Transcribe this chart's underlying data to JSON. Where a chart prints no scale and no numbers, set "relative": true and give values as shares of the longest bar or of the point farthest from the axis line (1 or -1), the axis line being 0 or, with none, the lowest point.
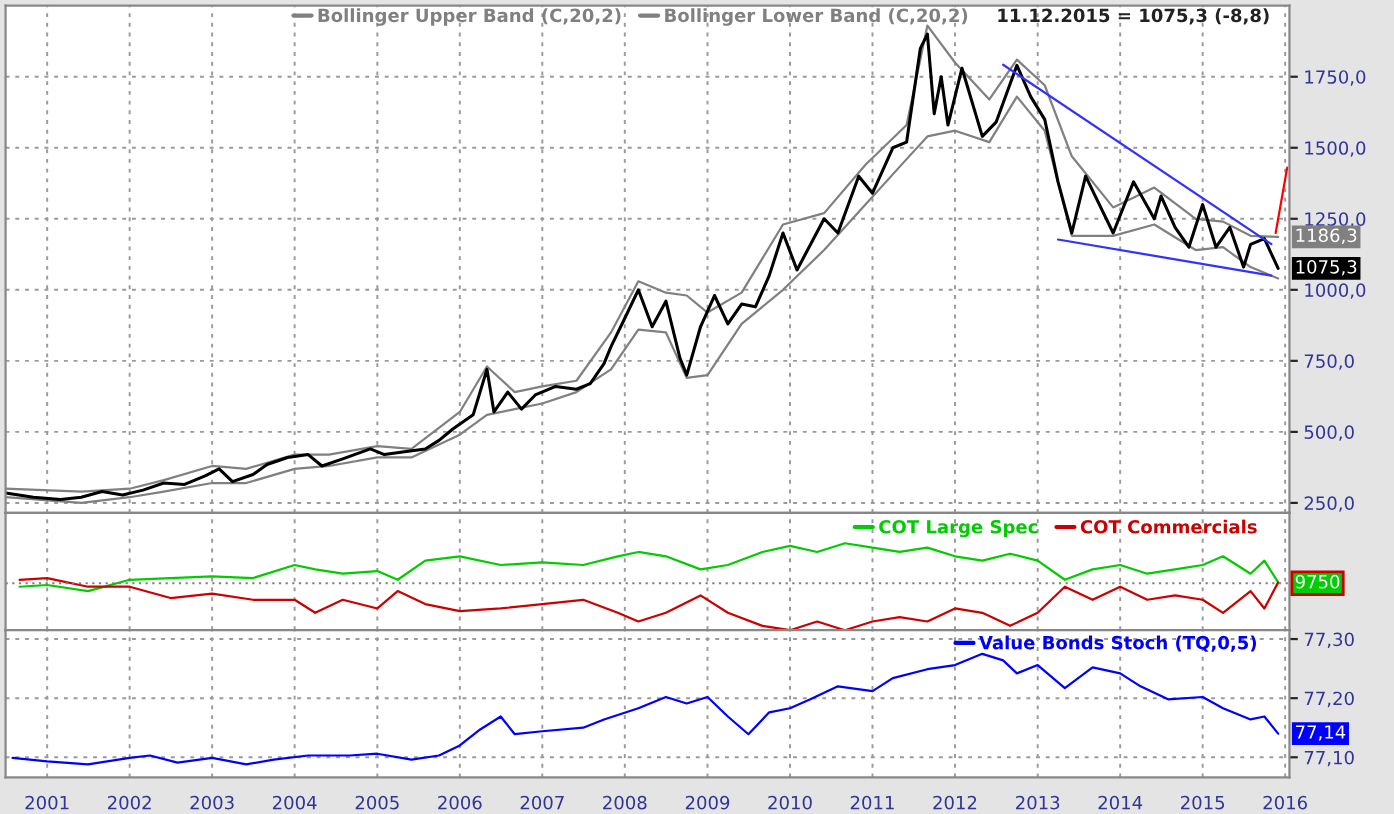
{
  "chart_data": [
    {
      "type": "line",
      "xlim": [
        "2000-07-01",
        "2016-01-20"
      ],
      "ylim": [
        215,
        2000
      ],
      "xticks": [
        "2001",
        "2002",
        "2003",
        "2004",
        "2005",
        "2006",
        "2007",
        "2008",
        "2009",
        "2010",
        "2011",
        "2012",
        "2013",
        "2014",
        "2015",
        "2016"
      ],
      "yticks": [
        {
          "value": 250,
          "label": "250,0"
        },
        {
          "value": 500,
          "label": "500,0"
        },
        {
          "value": 750,
          "label": "750,0"
        },
        {
          "value": 1000,
          "label": "1000,0"
        },
        {
          "value": 1250,
          "label": "1250,0"
        },
        {
          "value": 1500,
          "label": "1500,0"
        },
        {
          "value": 1750,
          "label": "1750,0"
        }
      ],
      "tick_labels": "y",
      "grid": true,
      "legend": "top right",
      "annotations": [
        "11.12.2015 = 1075,3 (-8,8)"
      ],
      "series": [
        {
          "name": "Bollinger Upper Band (C,20,2)",
          "color": "#808080",
          "x": [
            "2000-07",
            "2001-06",
            "2002-01",
            "2002-06",
            "2003-01",
            "2003-06",
            "2004-01",
            "2004-06",
            "2005-01",
            "2005-06",
            "2006-01",
            "2006-05",
            "2006-09",
            "2007-01",
            "2007-06",
            "2007-11",
            "2008-03",
            "2008-07",
            "2008-10",
            "2009-01",
            "2009-06",
            "2009-12",
            "2010-06",
            "2010-12",
            "2011-06",
            "2011-09",
            "2012-01",
            "2012-06",
            "2012-10",
            "2013-02",
            "2013-06",
            "2013-12",
            "2014-06",
            "2014-12",
            "2015-04",
            "2015-08",
            "2015-12"
          ],
          "values": [
            300,
            290,
            300,
            330,
            380,
            370,
            420,
            420,
            450,
            440,
            570,
            730,
            640,
            660,
            680,
            850,
            1030,
            990,
            980,
            920,
            990,
            1230,
            1270,
            1440,
            1580,
            1930,
            1800,
            1670,
            1810,
            1720,
            1470,
            1290,
            1360,
            1250,
            1240,
            1190,
            1186.3
          ],
          "value_labels": [
            null,
            null,
            null,
            null,
            null,
            null,
            null,
            null,
            null,
            null,
            null,
            null,
            null,
            null,
            null,
            null,
            null,
            null,
            null,
            null,
            null,
            null,
            null,
            null,
            null,
            null,
            null,
            null,
            null,
            null,
            null,
            null,
            null,
            null,
            null,
            null,
            "1186,3"
          ]
        },
        {
          "name": "Bollinger Lower Band (C,20,2)",
          "color": "#808080",
          "x": [
            "2000-07",
            "2001-06",
            "2002-01",
            "2002-06",
            "2003-01",
            "2003-06",
            "2004-01",
            "2004-06",
            "2005-01",
            "2005-06",
            "2006-01",
            "2006-05",
            "2006-09",
            "2007-01",
            "2007-06",
            "2007-11",
            "2008-03",
            "2008-07",
            "2008-10",
            "2009-01",
            "2009-06",
            "2009-12",
            "2010-06",
            "2010-12",
            "2011-06",
            "2011-09",
            "2012-01",
            "2012-06",
            "2012-10",
            "2013-02",
            "2013-06",
            "2013-12",
            "2014-06",
            "2014-12",
            "2015-04",
            "2015-08",
            "2015-12"
          ],
          "values": [
            270,
            250,
            270,
            290,
            320,
            320,
            370,
            380,
            410,
            410,
            490,
            560,
            580,
            600,
            640,
            720,
            860,
            850,
            690,
            700,
            880,
            1000,
            1140,
            1300,
            1460,
            1540,
            1560,
            1520,
            1680,
            1560,
            1190,
            1190,
            1230,
            1140,
            1150,
            1080,
            1040
          ]
        },
        {
          "color": "#000000",
          "x": [
            "2000-07",
            "2000-11",
            "2001-03",
            "2001-06",
            "2001-09",
            "2001-12",
            "2002-03",
            "2002-06",
            "2002-09",
            "2002-12",
            "2003-02",
            "2003-04",
            "2003-07",
            "2003-09",
            "2003-12",
            "2004-03",
            "2004-05",
            "2004-08",
            "2004-12",
            "2005-02",
            "2005-05",
            "2005-08",
            "2005-10",
            "2005-12",
            "2006-03",
            "2006-05",
            "2006-06",
            "2006-08",
            "2006-10",
            "2006-12",
            "2007-03",
            "2007-06",
            "2007-08",
            "2007-10",
            "2007-11",
            "2008-01",
            "2008-03",
            "2008-05",
            "2008-07",
            "2008-09",
            "2008-10",
            "2008-12",
            "2009-02",
            "2009-04",
            "2009-06",
            "2009-08",
            "2009-10",
            "2009-12",
            "2010-02",
            "2010-06",
            "2010-08",
            "2010-11",
            "2011-01",
            "2011-04",
            "2011-06",
            "2011-08",
            "2011-09",
            "2011-10",
            "2011-11",
            "2011-12",
            "2012-02",
            "2012-05",
            "2012-07",
            "2012-10",
            "2012-12",
            "2013-02",
            "2013-04",
            "2013-06",
            "2013-08",
            "2013-10",
            "2013-12",
            "2014-03",
            "2014-06",
            "2014-07",
            "2014-09",
            "2014-11",
            "2015-01",
            "2015-03",
            "2015-05",
            "2015-07",
            "2015-08",
            "2015-10",
            "2015-12"
          ],
          "values": [
            285,
            270,
            262,
            270,
            290,
            278,
            295,
            320,
            315,
            345,
            370,
            325,
            350,
            385,
            410,
            420,
            380,
            405,
            440,
            420,
            430,
            440,
            470,
            510,
            560,
            720,
            570,
            640,
            580,
            630,
            660,
            650,
            670,
            740,
            800,
            900,
            1000,
            870,
            960,
            760,
            700,
            870,
            980,
            880,
            950,
            940,
            1050,
            1200,
            1070,
            1250,
            1200,
            1400,
            1340,
            1500,
            1520,
            1850,
            1900,
            1620,
            1750,
            1580,
            1780,
            1540,
            1590,
            1790,
            1680,
            1600,
            1380,
            1200,
            1400,
            1300,
            1200,
            1380,
            1250,
            1330,
            1220,
            1150,
            1300,
            1150,
            1220,
            1080,
            1160,
            1180,
            1075.3
          ],
          "value_labels": [
            null,
            null,
            null,
            null,
            null,
            null,
            null,
            null,
            null,
            null,
            null,
            null,
            null,
            null,
            null,
            null,
            null,
            null,
            null,
            null,
            null,
            null,
            null,
            null,
            null,
            null,
            null,
            null,
            null,
            null,
            null,
            null,
            null,
            null,
            null,
            null,
            null,
            null,
            null,
            null,
            null,
            null,
            null,
            null,
            null,
            null,
            null,
            null,
            null,
            null,
            null,
            null,
            null,
            null,
            null,
            null,
            null,
            null,
            null,
            null,
            null,
            null,
            null,
            null,
            null,
            null,
            null,
            null,
            null,
            null,
            null,
            null,
            null,
            null,
            null,
            null,
            null,
            null,
            null,
            null,
            null,
            null,
            "1075,3"
          ]
        },
        {
          "color": "#3232ff",
          "x": [
            "2012-08",
            "2015-11"
          ],
          "values": [
            1792,
            1161
          ]
        },
        {
          "color": "#3232ff",
          "x": [
            "2013-04",
            "2015-11"
          ],
          "values": [
            1177,
            1050
          ]
        },
        {
          "color": "#ff0000",
          "x": [
            "2015-11-20",
            "2016-01-10"
          ],
          "values": [
            1200,
            1430
          ]
        }
      ]
    },
    {
      "type": "line",
      "relative": true,
      "xlim": [
        "2000-07-01",
        "2016-01-20"
      ],
      "xticks": [
        "2001",
        "2002",
        "2003",
        "2004",
        "2005",
        "2006",
        "2007",
        "2008",
        "2009",
        "2010",
        "2011",
        "2012",
        "2013",
        "2014",
        "2015",
        "2016"
      ],
      "tick_labels": false,
      "grid": true,
      "legend": "top right",
      "ref_lines": [
        {
          "axis": "y",
          "value": 0.54,
          "color": "#808080",
          "line_style": "dotted"
        }
      ],
      "annotations": [
        {
          "text": "9750",
          "y": 0.54
        }
      ],
      "x": [
        "2000-09",
        "2001-01",
        "2001-07",
        "2002-01",
        "2002-07",
        "2003-01",
        "2003-07",
        "2004-01",
        "2004-04",
        "2004-08",
        "2005-01",
        "2005-04",
        "2005-08",
        "2006-01",
        "2006-07",
        "2007-01",
        "2007-07",
        "2007-12",
        "2008-03",
        "2008-07",
        "2008-12",
        "2009-04",
        "2009-09",
        "2010-01",
        "2010-05",
        "2010-09",
        "2011-01",
        "2011-05",
        "2011-09",
        "2012-01",
        "2012-05",
        "2012-09",
        "2013-01",
        "2013-05",
        "2013-09",
        "2014-01",
        "2014-05",
        "2014-09",
        "2015-01",
        "2015-04",
        "2015-08",
        "2015-10",
        "2015-12"
      ],
      "series": [
        {
          "name": "COT Large Spec",
          "color": "#00cc00",
          "values": [
            0.5,
            0.52,
            0.45,
            0.58,
            0.6,
            0.62,
            0.6,
            0.75,
            0.7,
            0.65,
            0.68,
            0.58,
            0.8,
            0.85,
            0.75,
            0.78,
            0.75,
            0.85,
            0.9,
            0.85,
            0.7,
            0.75,
            0.9,
            0.97,
            0.9,
            1.0,
            0.95,
            0.9,
            0.95,
            0.85,
            0.8,
            0.88,
            0.8,
            0.58,
            0.7,
            0.75,
            0.65,
            0.7,
            0.75,
            0.85,
            0.65,
            0.8,
            0.55
          ]
        },
        {
          "name": "COT Commercials",
          "color": "#cc0000",
          "values": [
            0.58,
            0.6,
            0.5,
            0.5,
            0.37,
            0.42,
            0.35,
            0.35,
            0.2,
            0.35,
            0.25,
            0.45,
            0.3,
            0.22,
            0.25,
            0.3,
            0.35,
            0.2,
            0.1,
            0.2,
            0.4,
            0.2,
            0.05,
            0,
            0.1,
            0,
            0.1,
            0.15,
            0.1,
            0.25,
            0.2,
            0.05,
            0.2,
            0.5,
            0.35,
            0.5,
            0.35,
            0.4,
            0.35,
            0.2,
            0.45,
            0.25,
            0.55
          ]
        }
      ]
    },
    {
      "type": "line",
      "xlim": [
        "2000-07-01",
        "2016-01-20"
      ],
      "ylim": [
        77.066,
        77.315
      ],
      "xticks": [
        "2001",
        "2002",
        "2003",
        "2004",
        "2005",
        "2006",
        "2007",
        "2008",
        "2009",
        "2010",
        "2011",
        "2012",
        "2013",
        "2014",
        "2015",
        "2016"
      ],
      "yticks": [
        {
          "value": 77.1,
          "label": "77,10"
        },
        {
          "value": 77.2,
          "label": "77,20"
        },
        {
          "value": 77.3,
          "label": "77,30"
        }
      ],
      "grid": true,
      "legend": "top right",
      "x": [
        "2000-08",
        "2001-01",
        "2001-07",
        "2002-01",
        "2002-04",
        "2002-08",
        "2003-01",
        "2003-06",
        "2003-10",
        "2004-03",
        "2004-09",
        "2005-01",
        "2005-06",
        "2005-10",
        "2006-01",
        "2006-04",
        "2006-07",
        "2006-09",
        "2007-01",
        "2007-07",
        "2007-10",
        "2008-03",
        "2008-07",
        "2008-10",
        "2009-01",
        "2009-04",
        "2009-07",
        "2009-10",
        "2010-01",
        "2010-04",
        "2010-08",
        "2011-01",
        "2011-04",
        "2011-09",
        "2012-01",
        "2012-05",
        "2012-08",
        "2012-10",
        "2013-01",
        "2013-05",
        "2013-09",
        "2014-01",
        "2014-04",
        "2014-08",
        "2015-01",
        "2015-04",
        "2015-08",
        "2015-10",
        "2015-12"
      ],
      "series": [
        {
          "name": "Value Bonds Stoch (TQ,0,5)",
          "color": "#0000ff",
          "values": [
            77.099,
            77.093,
            77.088,
            77.099,
            77.103,
            77.091,
            77.099,
            77.088,
            77.096,
            77.103,
            77.103,
            77.106,
            77.096,
            77.103,
            77.12,
            77.147,
            77.169,
            77.139,
            77.144,
            77.15,
            77.164,
            77.183,
            77.202,
            77.191,
            77.202,
            77.169,
            77.139,
            77.176,
            77.183,
            77.198,
            77.22,
            77.212,
            77.234,
            77.249,
            77.256,
            77.275,
            77.264,
            77.242,
            77.256,
            77.217,
            77.252,
            77.242,
            77.22,
            77.198,
            77.202,
            77.183,
            77.164,
            77.169,
            77.14
          ],
          "value_labels": [
            null,
            null,
            null,
            null,
            null,
            null,
            null,
            null,
            null,
            null,
            null,
            null,
            null,
            null,
            null,
            null,
            null,
            null,
            null,
            null,
            null,
            null,
            null,
            null,
            null,
            null,
            null,
            null,
            null,
            null,
            null,
            null,
            null,
            null,
            null,
            null,
            null,
            null,
            null,
            null,
            null,
            null,
            null,
            null,
            null,
            null,
            null,
            null,
            "77,14"
          ]
        }
      ]
    }
  ]
}
